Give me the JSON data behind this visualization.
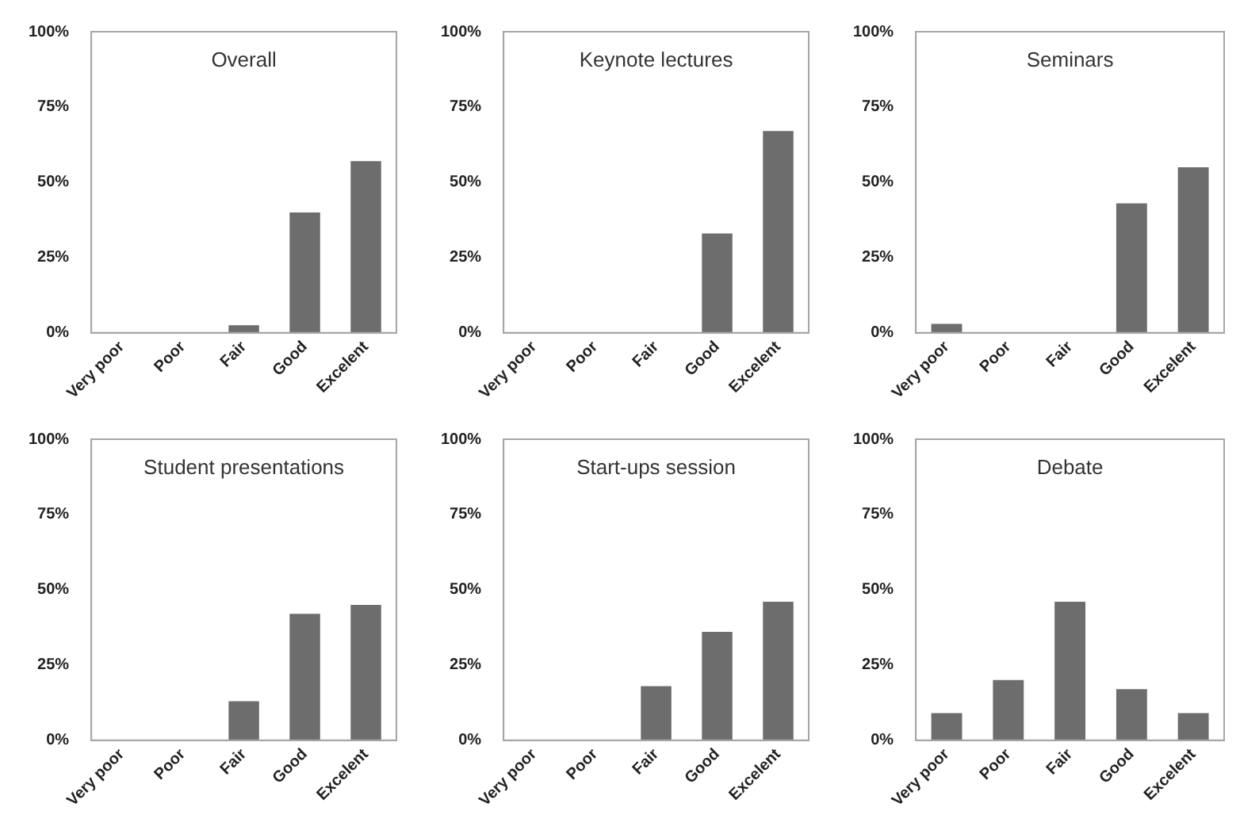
{
  "chart_data": [
    {
      "type": "bar",
      "title": "Overall",
      "categories": [
        "Very poor",
        "Poor",
        "Fair",
        "Good",
        "Excelent"
      ],
      "values": [
        0,
        0,
        2.5,
        40,
        57
      ],
      "color": "#6d6d6d",
      "ylim": [
        0,
        100
      ],
      "yticks": [
        {
          "value": 0,
          "label": "0%"
        },
        {
          "value": 25,
          "label": "25%"
        },
        {
          "value": 50,
          "label": "50%"
        },
        {
          "value": 75,
          "label": "75%"
        },
        {
          "value": 100,
          "label": "100%"
        }
      ]
    },
    {
      "type": "bar",
      "title": "Keynote lectures",
      "categories": [
        "Very poor",
        "Poor",
        "Fair",
        "Good",
        "Excelent"
      ],
      "values": [
        0,
        0,
        0,
        33,
        67
      ],
      "color": "#6d6d6d",
      "ylim": [
        0,
        100
      ],
      "yticks": [
        {
          "value": 0,
          "label": "0%"
        },
        {
          "value": 25,
          "label": "25%"
        },
        {
          "value": 50,
          "label": "50%"
        },
        {
          "value": 75,
          "label": "75%"
        },
        {
          "value": 100,
          "label": "100%"
        }
      ]
    },
    {
      "type": "bar",
      "title": "Seminars",
      "categories": [
        "Very poor",
        "Poor",
        "Fair",
        "Good",
        "Excelent"
      ],
      "values": [
        3,
        0,
        0,
        43,
        55
      ],
      "color": "#6d6d6d",
      "ylim": [
        0,
        100
      ],
      "yticks": [
        {
          "value": 0,
          "label": "0%"
        },
        {
          "value": 25,
          "label": "25%"
        },
        {
          "value": 50,
          "label": "50%"
        },
        {
          "value": 75,
          "label": "75%"
        },
        {
          "value": 100,
          "label": "100%"
        }
      ]
    },
    {
      "type": "bar",
      "title": "Student presentations",
      "categories": [
        "Very poor",
        "Poor",
        "Fair",
        "Good",
        "Excelent"
      ],
      "values": [
        0,
        0,
        13,
        42,
        45
      ],
      "color": "#6d6d6d",
      "ylim": [
        0,
        100
      ],
      "yticks": [
        {
          "value": 0,
          "label": "0%"
        },
        {
          "value": 25,
          "label": "25%"
        },
        {
          "value": 50,
          "label": "50%"
        },
        {
          "value": 75,
          "label": "75%"
        },
        {
          "value": 100,
          "label": "100%"
        }
      ]
    },
    {
      "type": "bar",
      "title": "Start-ups session",
      "categories": [
        "Very poor",
        "Poor",
        "Fair",
        "Good",
        "Excelent"
      ],
      "values": [
        0,
        0,
        18,
        36,
        46
      ],
      "color": "#6d6d6d",
      "ylim": [
        0,
        100
      ],
      "yticks": [
        {
          "value": 0,
          "label": "0%"
        },
        {
          "value": 25,
          "label": "25%"
        },
        {
          "value": 50,
          "label": "50%"
        },
        {
          "value": 75,
          "label": "75%"
        },
        {
          "value": 100,
          "label": "100%"
        }
      ]
    },
    {
      "type": "bar",
      "title": "Debate",
      "categories": [
        "Very poor",
        "Poor",
        "Fair",
        "Good",
        "Excelent"
      ],
      "values": [
        9,
        20,
        46,
        17,
        9
      ],
      "color": "#6d6d6d",
      "ylim": [
        0,
        100
      ],
      "yticks": [
        {
          "value": 0,
          "label": "0%"
        },
        {
          "value": 25,
          "label": "25%"
        },
        {
          "value": 50,
          "label": "50%"
        },
        {
          "value": 75,
          "label": "75%"
        },
        {
          "value": 100,
          "label": "100%"
        }
      ]
    }
  ]
}
